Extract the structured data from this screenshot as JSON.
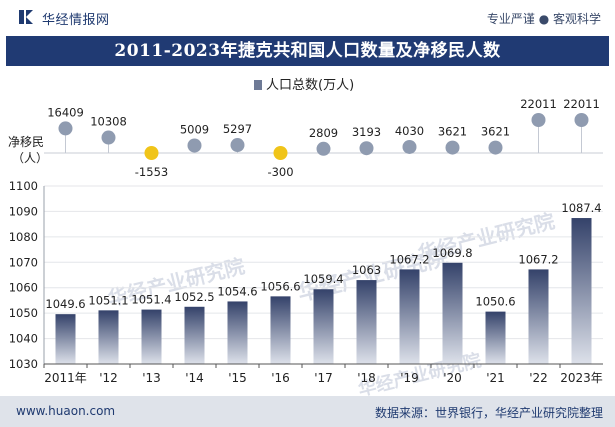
{
  "brand": {
    "name": "华经情报网",
    "tagline": "专业严谨 ● 客观科学"
  },
  "title": "2011-2023年捷克共和国人口数量及净移民人数",
  "legend": {
    "series_label": "人口总数(万人)"
  },
  "migration_label": "净移民\n（人）",
  "watermark": "华经产业研究院",
  "watermark_url": "www.huaon.com",
  "footer": {
    "url": "www.huaon.com",
    "source": "数据来源：世界银行，华经产业研究院整理"
  },
  "colors": {
    "title_bg": "#203a73",
    "bar_top": "#34426a",
    "bar_bottom": "#d9dde6",
    "positive_dot": "#8f9bb0",
    "negative_dot": "#f0c419",
    "footer_bg": "#dfe3ea"
  },
  "chart_data": [
    {
      "type": "bar",
      "title": "",
      "xlabel": "",
      "ylabel": "",
      "categories": [
        "2011年",
        "'12",
        "'13",
        "'14",
        "'15",
        "'16",
        "'17",
        "'18",
        "'19",
        "'20",
        "'21",
        "'22",
        "2023年"
      ],
      "series": [
        {
          "name": "人口总数(万人)",
          "values": [
            1049.6,
            1051.1,
            1051.4,
            1052.5,
            1054.6,
            1056.6,
            1059.4,
            1063,
            1067.2,
            1069.8,
            1050.6,
            1067.2,
            1087.4
          ]
        }
      ],
      "ylim": [
        1030,
        1100
      ],
      "yticks": [
        1030,
        1040,
        1050,
        1060,
        1070,
        1080,
        1090,
        1100
      ],
      "grid": true,
      "legend_position": "top-center"
    },
    {
      "type": "scatter",
      "title": "",
      "ylabel": "净移民（人）",
      "categories": [
        "2011年",
        "'12",
        "'13",
        "'14",
        "'15",
        "'16",
        "'17",
        "'18",
        "'19",
        "'20",
        "'21",
        "'22",
        "2023年"
      ],
      "series": [
        {
          "values": [
            16409,
            10308,
            -1553,
            5009,
            5297,
            -300,
            2809,
            3193,
            4030,
            3621,
            3621,
            22011,
            22011
          ]
        }
      ]
    }
  ]
}
